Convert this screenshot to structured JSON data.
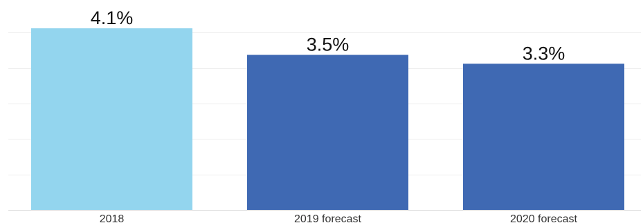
{
  "chart_data": {
    "type": "bar",
    "categories": [
      "2018",
      "2019 forecast",
      "2020 forecast"
    ],
    "values": [
      4.1,
      3.5,
      3.3
    ],
    "data_labels": [
      "4.1%",
      "3.5%",
      "3.3%"
    ],
    "bar_colors": [
      "#93d5ee",
      "#3f69b3",
      "#3f69b3"
    ],
    "ylim": [
      0,
      4.1
    ],
    "gridlines": [
      0.8,
      1.6,
      2.4,
      3.2,
      4.0
    ],
    "grid": true,
    "title": "",
    "xlabel": "",
    "ylabel": ""
  }
}
